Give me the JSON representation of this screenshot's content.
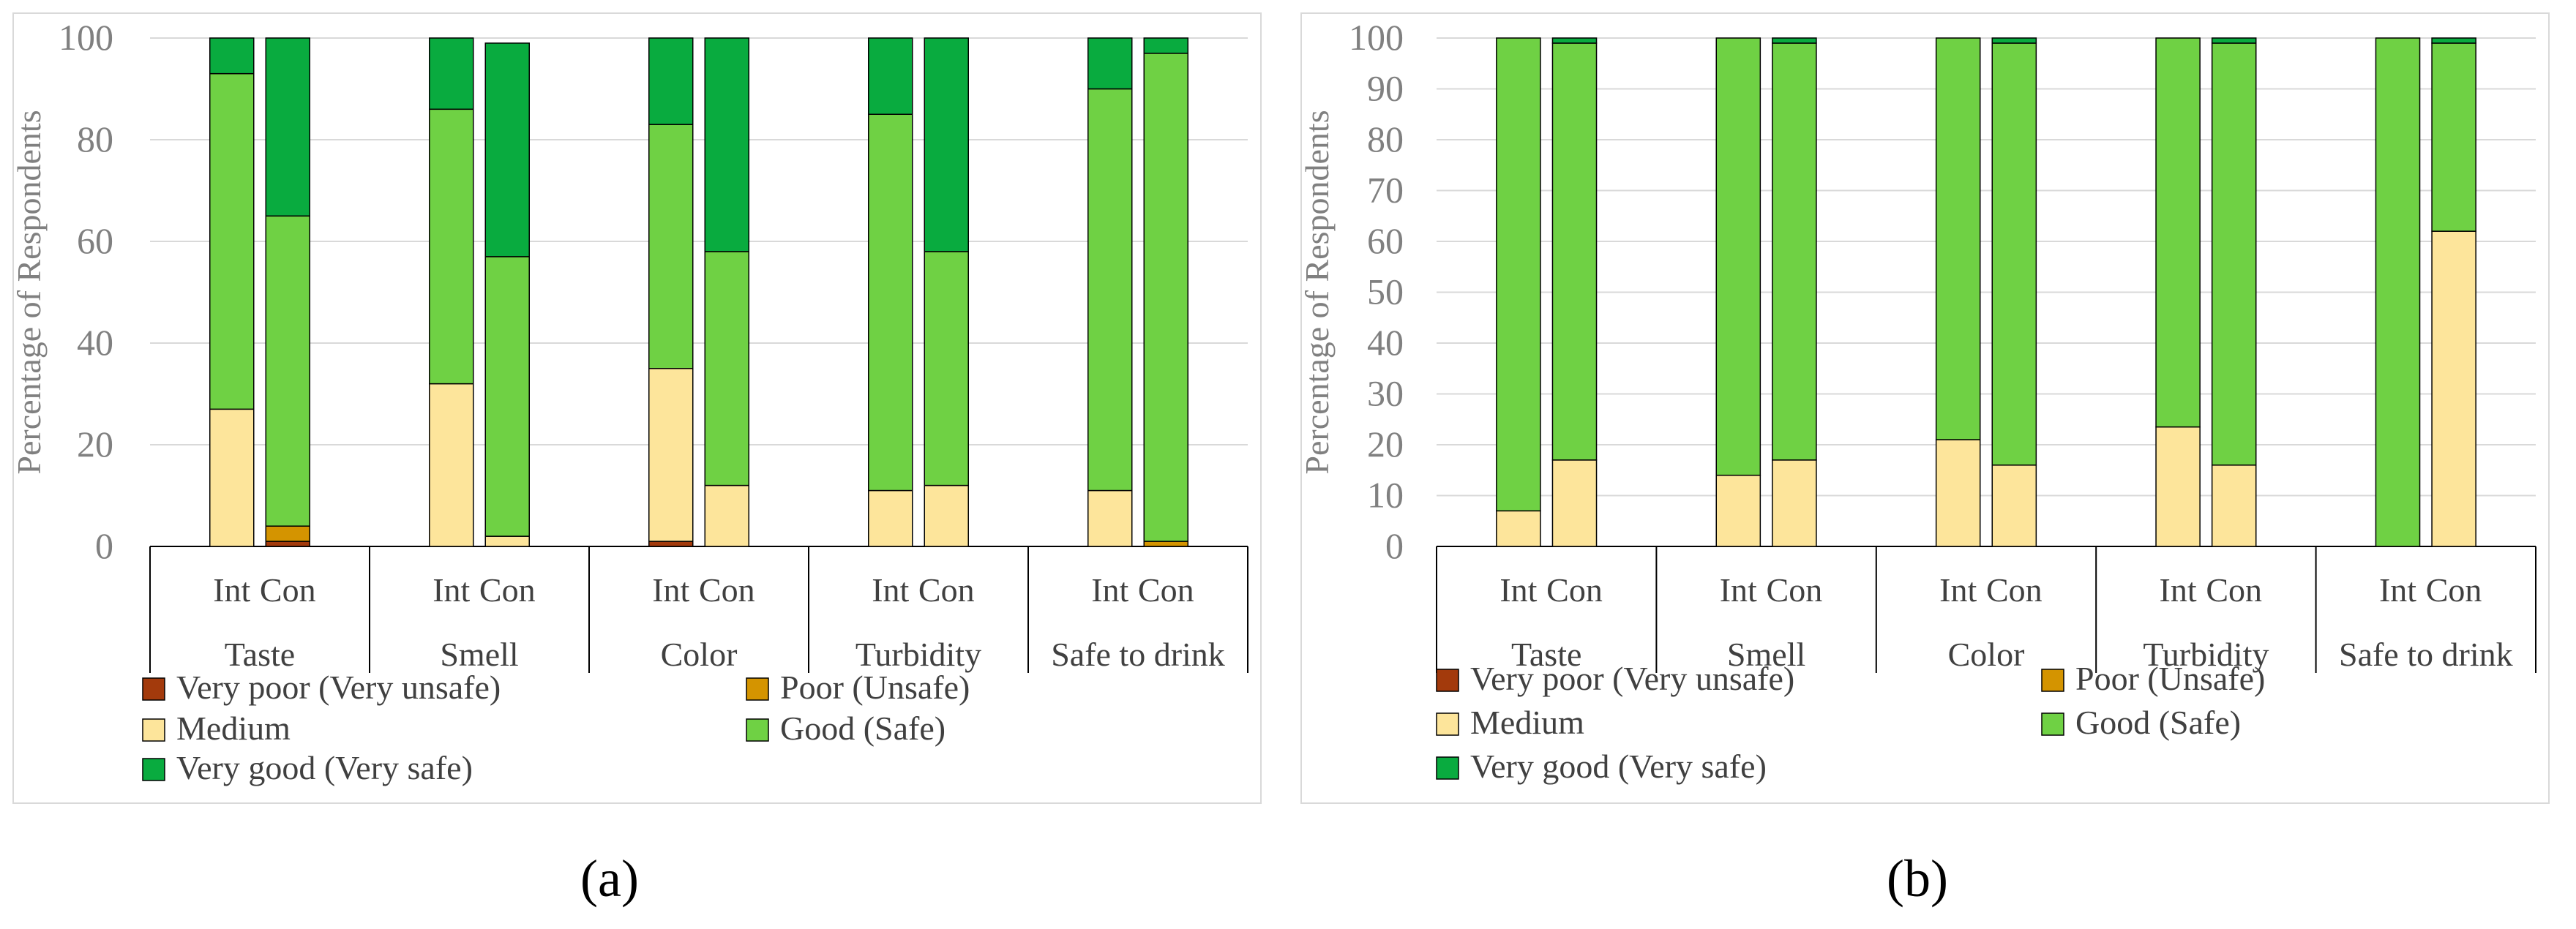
{
  "chart_data": [
    {
      "type": "bar",
      "stacked": true,
      "panel_label": "(a)",
      "ylabel": "Percentage of Respondents",
      "ylim": [
        0,
        100
      ],
      "yticks": [
        0,
        20,
        40,
        60,
        80,
        100
      ],
      "grid": true,
      "legend_position": "bottom",
      "categories": [
        "Taste",
        "Smell",
        "Color",
        "Turbidity",
        "Safe to drink"
      ],
      "subcategory_labels": [
        "Int",
        "Con"
      ],
      "bars": [
        {
          "category": "Taste",
          "sub": "Int",
          "values": [
            0,
            0,
            27,
            66,
            7
          ]
        },
        {
          "category": "Taste",
          "sub": "Con",
          "values": [
            1,
            3,
            0,
            61,
            35
          ]
        },
        {
          "category": "Smell",
          "sub": "Int",
          "values": [
            0,
            0,
            32,
            54,
            14
          ]
        },
        {
          "category": "Smell",
          "sub": "Con",
          "values": [
            0,
            0,
            2,
            55,
            42
          ]
        },
        {
          "category": "Color",
          "sub": "Int",
          "values": [
            1,
            0,
            34,
            48,
            17
          ]
        },
        {
          "category": "Color",
          "sub": "Con",
          "values": [
            0,
            0,
            12,
            46,
            42
          ]
        },
        {
          "category": "Turbidity",
          "sub": "Int",
          "values": [
            0,
            0,
            11,
            74,
            15
          ]
        },
        {
          "category": "Turbidity",
          "sub": "Con",
          "values": [
            0,
            0,
            12,
            46,
            42
          ]
        },
        {
          "category": "Safe to drink",
          "sub": "Int",
          "values": [
            0,
            0,
            11,
            79,
            10
          ]
        },
        {
          "category": "Safe to drink",
          "sub": "Con",
          "values": [
            0,
            1,
            0,
            96,
            3
          ]
        }
      ]
    },
    {
      "type": "bar",
      "stacked": true,
      "panel_label": "(b)",
      "ylabel": "Percentage of Respondents",
      "ylim": [
        0,
        100
      ],
      "yticks": [
        0,
        10,
        20,
        30,
        40,
        50,
        60,
        70,
        80,
        90,
        100
      ],
      "grid": true,
      "legend_position": "bottom",
      "categories": [
        "Taste",
        "Smell",
        "Color",
        "Turbidity",
        "Safe to drink"
      ],
      "subcategory_labels": [
        "Int",
        "Con"
      ],
      "bars": [
        {
          "category": "Taste",
          "sub": "Int",
          "values": [
            0,
            0,
            7,
            93,
            0
          ]
        },
        {
          "category": "Taste",
          "sub": "Con",
          "values": [
            0,
            0,
            17,
            82,
            1
          ]
        },
        {
          "category": "Smell",
          "sub": "Int",
          "values": [
            0,
            0,
            14,
            86,
            0
          ]
        },
        {
          "category": "Smell",
          "sub": "Con",
          "values": [
            0,
            0,
            17,
            82,
            1
          ]
        },
        {
          "category": "Color",
          "sub": "Int",
          "values": [
            0,
            0,
            21,
            79,
            0
          ]
        },
        {
          "category": "Color",
          "sub": "Con",
          "values": [
            0,
            0,
            16,
            83,
            1
          ]
        },
        {
          "category": "Turbidity",
          "sub": "Int",
          "values": [
            0,
            0,
            23.5,
            76.5,
            0
          ]
        },
        {
          "category": "Turbidity",
          "sub": "Con",
          "values": [
            0,
            0,
            16,
            83,
            1
          ]
        },
        {
          "category": "Safe to drink",
          "sub": "Int",
          "values": [
            0,
            0,
            0,
            100,
            0
          ]
        },
        {
          "category": "Safe to drink",
          "sub": "Con",
          "values": [
            0,
            0,
            62,
            37,
            1
          ]
        }
      ]
    }
  ],
  "legend": [
    {
      "label": "Very poor (Very unsafe)",
      "color": "#a33a0c"
    },
    {
      "label": "Poor (Unsafe)",
      "color": "#d49400"
    },
    {
      "label": "Medium",
      "color": "#fde59b"
    },
    {
      "label": "Good (Safe)",
      "color": "#6fd144"
    },
    {
      "label": "Very good (Very safe)",
      "color": "#09ab3f"
    }
  ],
  "colors": {
    "grid": "#d9d9d9",
    "axis": "#808080",
    "tick_text": "#808080",
    "border": "#d9d9d9",
    "bar_stroke": "#000000"
  }
}
